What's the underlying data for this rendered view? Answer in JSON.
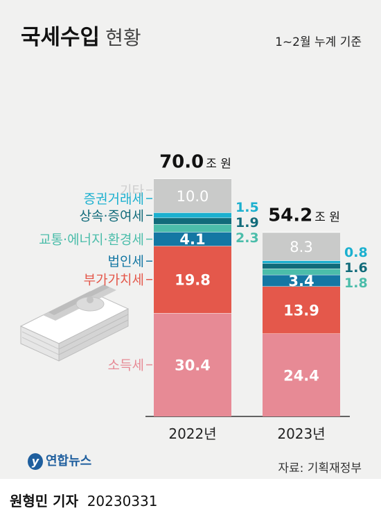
{
  "header": {
    "title": "국세수입",
    "subtitle": "현황",
    "basis": "1~2월 누계 기준"
  },
  "footer": {
    "source": "자료: 기획재정부",
    "logo": "연합뉴스",
    "reporter": "원형민 기자",
    "date": "20230331"
  },
  "colors": {
    "기타": "#c9cac9",
    "증권거래세": "#1bb0cf",
    "상속·증여세": "#116b7a",
    "교통·에너지·환경세": "#4bbdaa",
    "법인세": "#1477a3",
    "부가가치세": "#e4584b",
    "소득세": "#e78a95"
  },
  "chart_data": {
    "type": "bar",
    "stacked": true,
    "unit": "조 원",
    "categories": [
      "2022년",
      "2023년"
    ],
    "totals": [
      70.0,
      54.2
    ],
    "total_labels": [
      "70.0",
      "54.2"
    ],
    "series": [
      {
        "name": "소득세",
        "values": [
          30.4,
          24.4
        ],
        "labels": [
          "30.4",
          "24.4"
        ]
      },
      {
        "name": "부가가치세",
        "values": [
          19.8,
          13.9
        ],
        "labels": [
          "19.8",
          "13.9"
        ]
      },
      {
        "name": "법인세",
        "values": [
          4.1,
          3.4
        ],
        "labels": [
          "4.1",
          "3.4"
        ]
      },
      {
        "name": "교통·에너지·환경세",
        "values": [
          2.3,
          1.8
        ],
        "labels": [
          "2.3",
          "1.8"
        ]
      },
      {
        "name": "상속·증여세",
        "values": [
          1.9,
          1.6
        ],
        "labels": [
          "1.9",
          "1.6"
        ]
      },
      {
        "name": "증권거래세",
        "values": [
          1.5,
          0.8
        ],
        "labels": [
          "1.5",
          "0.8"
        ]
      },
      {
        "name": "기타",
        "values": [
          10.0,
          8.3
        ],
        "labels": [
          "10.0",
          "8.3"
        ]
      }
    ]
  }
}
